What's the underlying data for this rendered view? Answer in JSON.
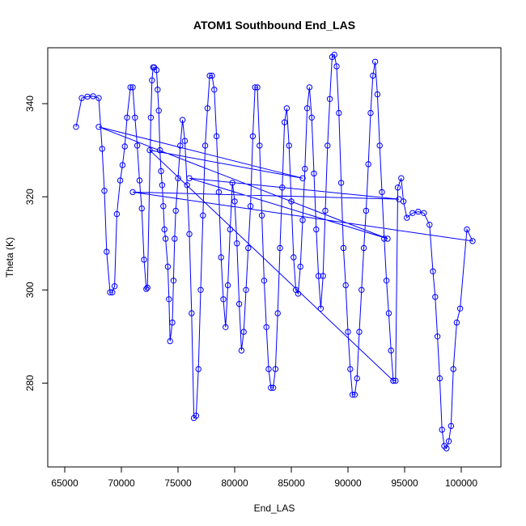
{
  "chart_data": {
    "type": "line",
    "title": "ATOM1 Southbound End_LAS",
    "xlabel": "End_LAS",
    "ylabel": "Theta (K)",
    "xlim": [
      63500,
      103500
    ],
    "ylim": [
      262,
      352
    ],
    "xticks": [
      65000,
      70000,
      75000,
      80000,
      85000,
      90000,
      95000,
      100000
    ],
    "xtick_labels": [
      "65000",
      "70000",
      "75000",
      "80000",
      "85000",
      "90000",
      "95000",
      "100000"
    ],
    "yticks": [
      280,
      300,
      320,
      340
    ],
    "ytick_labels": [
      "280",
      "300",
      "320",
      "340"
    ],
    "grid": false,
    "legend": "none",
    "color": "#0000ff",
    "marker": "open-circle",
    "series": [
      {
        "values": [
          [
            66000,
            335.0
          ],
          [
            66500,
            341.2
          ],
          [
            67000,
            341.5
          ],
          [
            67500,
            341.6
          ],
          [
            68000,
            341.2
          ],
          [
            68300,
            330.3
          ],
          [
            68500,
            321.3
          ],
          [
            68700,
            308.2
          ],
          [
            69000,
            299.5
          ],
          [
            69200,
            299.5
          ],
          [
            69400,
            300.8
          ],
          [
            69600,
            316.3
          ],
          [
            69900,
            323.5
          ],
          [
            70100,
            326.8
          ],
          [
            70300,
            330.8
          ],
          [
            70500,
            337.0
          ],
          [
            70800,
            343.5
          ],
          [
            71000,
            343.5
          ],
          [
            71200,
            337.0
          ],
          [
            71400,
            331.0
          ],
          [
            71600,
            323.5
          ],
          [
            71800,
            317.5
          ],
          [
            72000,
            306.5
          ],
          [
            72200,
            300.2
          ],
          [
            72300,
            300.5
          ],
          [
            72600,
            337.0
          ],
          [
            72700,
            345.0
          ],
          [
            72800,
            347.8
          ],
          [
            72900,
            347.8
          ],
          [
            73100,
            347.2
          ],
          [
            73200,
            343.0
          ],
          [
            73300,
            338.5
          ],
          [
            73400,
            330.0
          ],
          [
            73500,
            325.5
          ],
          [
            73600,
            322.5
          ],
          [
            73700,
            318.0
          ],
          [
            73800,
            313.0
          ],
          [
            73900,
            311.0
          ],
          [
            74100,
            305.0
          ],
          [
            74200,
            298.0
          ],
          [
            74300,
            289.0
          ],
          [
            74500,
            293.0
          ],
          [
            74600,
            302.0
          ],
          [
            74700,
            311.0
          ],
          [
            74800,
            317.0
          ],
          [
            75000,
            324.0
          ],
          [
            75200,
            331.0
          ],
          [
            75400,
            336.5
          ],
          [
            75600,
            332.0
          ],
          [
            75800,
            322.5
          ],
          [
            76000,
            312.0
          ],
          [
            76200,
            295.0
          ],
          [
            76400,
            272.5
          ],
          [
            76600,
            273.0
          ],
          [
            76800,
            283.0
          ],
          [
            77000,
            300.0
          ],
          [
            77200,
            316.0
          ],
          [
            77400,
            331.0
          ],
          [
            77600,
            339.0
          ],
          [
            77800,
            346.0
          ],
          [
            78000,
            346.0
          ],
          [
            78200,
            343.0
          ],
          [
            78400,
            333.0
          ],
          [
            78600,
            321.0
          ],
          [
            78800,
            307.0
          ],
          [
            79000,
            298.0
          ],
          [
            79200,
            292.0
          ],
          [
            79400,
            301.0
          ],
          [
            79600,
            313.0
          ],
          [
            79800,
            323.0
          ],
          [
            80000,
            319.0
          ],
          [
            80200,
            310.0
          ],
          [
            80400,
            297.0
          ],
          [
            80600,
            287.0
          ],
          [
            80800,
            291.0
          ],
          [
            81000,
            300.0
          ],
          [
            81200,
            309.0
          ],
          [
            81400,
            318.0
          ],
          [
            81600,
            333.0
          ],
          [
            81800,
            343.5
          ],
          [
            82000,
            343.5
          ],
          [
            82200,
            331.0
          ],
          [
            82400,
            316.0
          ],
          [
            82600,
            302.0
          ],
          [
            82800,
            292.0
          ],
          [
            83000,
            283.0
          ],
          [
            83200,
            279.0
          ],
          [
            83400,
            279.0
          ],
          [
            83600,
            283.0
          ],
          [
            83800,
            295.0
          ],
          [
            84000,
            309.0
          ],
          [
            84200,
            322.0
          ],
          [
            84400,
            336.0
          ],
          [
            84600,
            339.0
          ],
          [
            84800,
            331.0
          ],
          [
            85000,
            319.0
          ],
          [
            85200,
            307.0
          ],
          [
            85400,
            300.0
          ],
          [
            85600,
            299.2
          ],
          [
            85800,
            305.0
          ],
          [
            86000,
            315.0
          ],
          [
            86200,
            326.0
          ],
          [
            86400,
            339.0
          ],
          [
            86600,
            343.5
          ],
          [
            86800,
            337.0
          ],
          [
            87000,
            325.0
          ],
          [
            87200,
            313.0
          ],
          [
            87400,
            303.0
          ],
          [
            87600,
            296.0
          ],
          [
            87800,
            303.0
          ],
          [
            88000,
            317.0
          ],
          [
            88200,
            331.0
          ],
          [
            88400,
            341.0
          ],
          [
            88600,
            350.0
          ],
          [
            88800,
            350.5
          ],
          [
            89000,
            348.0
          ],
          [
            89200,
            338.0
          ],
          [
            89400,
            323.0
          ],
          [
            89600,
            309.0
          ],
          [
            89800,
            301.0
          ],
          [
            90000,
            291.0
          ],
          [
            90200,
            283.0
          ],
          [
            90400,
            277.5
          ],
          [
            90600,
            277.5
          ],
          [
            90800,
            281.0
          ],
          [
            91000,
            291.0
          ],
          [
            91200,
            300.0
          ],
          [
            91400,
            309.0
          ],
          [
            91600,
            317.0
          ],
          [
            91800,
            327.0
          ],
          [
            92000,
            338.0
          ],
          [
            92200,
            346.0
          ],
          [
            92400,
            349.0
          ],
          [
            92600,
            342.0
          ],
          [
            92800,
            331.0
          ],
          [
            93000,
            321.0
          ],
          [
            93200,
            311.0
          ],
          [
            93400,
            302.0
          ],
          [
            93600,
            295.0
          ],
          [
            93800,
            287.0
          ],
          [
            94000,
            280.5
          ],
          [
            94200,
            280.5
          ],
          [
            94400,
            322.0
          ],
          [
            94700,
            324.0
          ],
          [
            94900,
            319.0
          ],
          [
            95200,
            315.5
          ],
          [
            95700,
            316.5
          ],
          [
            96200,
            316.8
          ],
          [
            96700,
            316.5
          ],
          [
            97200,
            314.0
          ],
          [
            97500,
            304.0
          ],
          [
            97700,
            298.5
          ],
          [
            97900,
            290.0
          ],
          [
            98100,
            281.0
          ],
          [
            98300,
            270.0
          ],
          [
            98500,
            266.5
          ],
          [
            98700,
            266.0
          ],
          [
            98900,
            267.5
          ],
          [
            99100,
            270.8
          ],
          [
            99300,
            283.0
          ],
          [
            99600,
            293.0
          ],
          [
            99900,
            296.0
          ],
          [
            100500,
            313.0
          ],
          [
            101000,
            310.5
          ],
          [
            71000,
            321.0
          ],
          [
            94500,
            319.5
          ],
          [
            76000,
            324.0
          ],
          [
            93500,
            311.0
          ],
          [
            68000,
            335.0
          ],
          [
            86000,
            324.0
          ],
          [
            72500,
            330.0
          ],
          [
            94000,
            280.5
          ]
        ]
      }
    ]
  }
}
